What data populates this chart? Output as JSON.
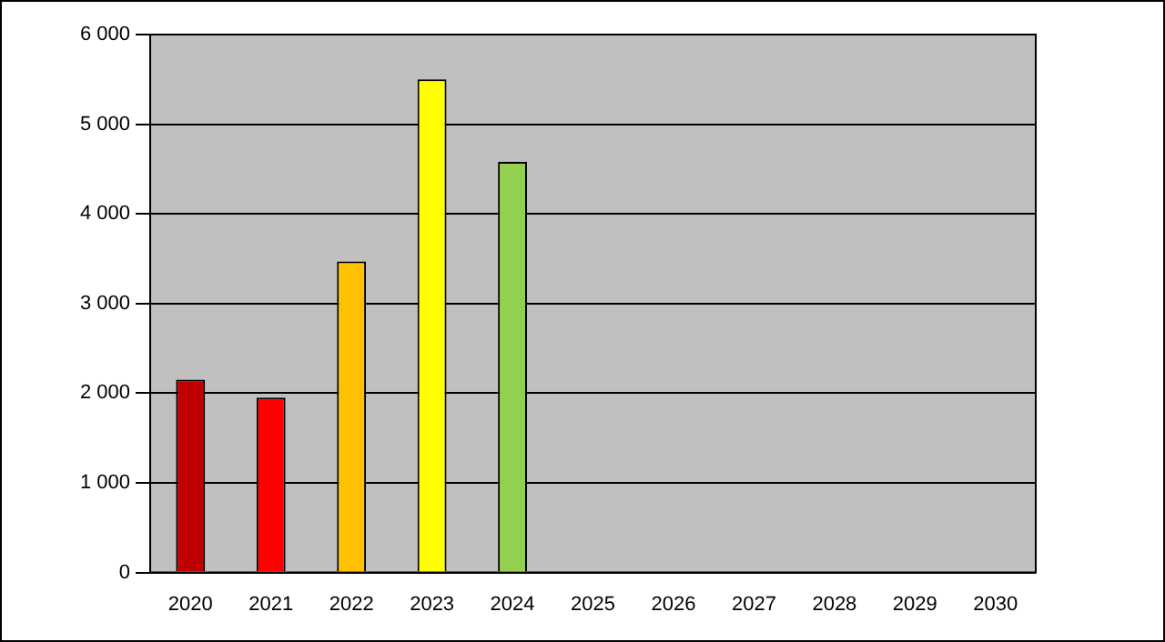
{
  "chart_data": {
    "type": "bar",
    "categories": [
      "2020",
      "2021",
      "2022",
      "2023",
      "2024",
      "2025",
      "2026",
      "2027",
      "2028",
      "2029",
      "2030"
    ],
    "values": [
      2150,
      1950,
      3470,
      5500,
      4580,
      null,
      null,
      null,
      null,
      null,
      null
    ],
    "colors": [
      "#c00000",
      "#ff0000",
      "#ffc000",
      "#ffff00",
      "#92d050",
      "#c0c0c0",
      "#c0c0c0",
      "#c0c0c0",
      "#c0c0c0",
      "#c0c0c0",
      "#c0c0c0"
    ],
    "ylim": [
      0,
      6000
    ],
    "yticks": [
      0,
      {
        "value": 1000,
        "label": "1 000"
      },
      {
        "value": 2000,
        "label": "2 000"
      },
      {
        "value": 3000,
        "label": "3 000"
      },
      {
        "value": 4000,
        "label": "4 000"
      },
      {
        "value": 5000,
        "label": "5 000"
      },
      {
        "value": 6000,
        "label": "6 000"
      }
    ],
    "grid": "y",
    "legend": false
  }
}
